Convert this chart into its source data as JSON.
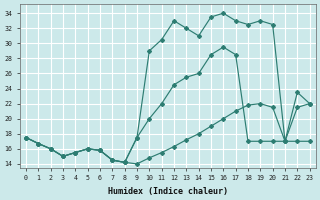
{
  "xlabel": "Humidex (Indice chaleur)",
  "bg_color": "#cce9ea",
  "grid_color": "#b8d8da",
  "line_color": "#2d7d72",
  "xlim": [
    -0.5,
    23.5
  ],
  "ylim": [
    13.5,
    35.2
  ],
  "yticks": [
    14,
    16,
    18,
    20,
    22,
    24,
    26,
    28,
    30,
    32,
    34
  ],
  "xticks": [
    0,
    1,
    2,
    3,
    4,
    5,
    6,
    7,
    8,
    9,
    10,
    11,
    12,
    13,
    14,
    15,
    16,
    17,
    18,
    19,
    20,
    21,
    22,
    23
  ],
  "curve_top_x": [
    0,
    1,
    2,
    3,
    4,
    5,
    6,
    7,
    8,
    9,
    10,
    11,
    12,
    13,
    14,
    15,
    16,
    17,
    18,
    19,
    20,
    21,
    22,
    23
  ],
  "curve_top_y": [
    17.5,
    16.7,
    16.0,
    15.0,
    15.5,
    16.0,
    15.8,
    14.5,
    14.2,
    17.5,
    29.0,
    30.5,
    33.0,
    32.0,
    31.0,
    33.5,
    34.0,
    33.0,
    32.5,
    33.0,
    32.5,
    17.0,
    17.0,
    17.0
  ],
  "curve_mid_x": [
    0,
    1,
    2,
    3,
    4,
    5,
    6,
    7,
    8,
    9,
    10,
    11,
    12,
    13,
    14,
    15,
    16,
    17,
    18,
    19,
    20,
    21,
    22,
    23
  ],
  "curve_mid_y": [
    17.5,
    16.7,
    16.0,
    15.0,
    15.5,
    16.0,
    15.8,
    14.5,
    14.2,
    17.5,
    20.0,
    22.0,
    24.5,
    25.5,
    26.0,
    28.5,
    29.5,
    28.5,
    17.0,
    17.0,
    17.0,
    17.0,
    23.5,
    22.0
  ],
  "curve_bot_x": [
    0,
    1,
    2,
    3,
    4,
    5,
    6,
    7,
    8,
    9,
    10,
    11,
    12,
    13,
    14,
    15,
    16,
    17,
    18,
    19,
    20,
    21,
    22,
    23
  ],
  "curve_bot_y": [
    17.5,
    16.7,
    16.0,
    15.0,
    15.5,
    16.0,
    15.8,
    14.5,
    14.2,
    14.0,
    14.8,
    15.5,
    16.3,
    17.2,
    18.0,
    19.0,
    20.0,
    21.0,
    21.8,
    22.0,
    21.5,
    17.0,
    21.5,
    22.0
  ]
}
